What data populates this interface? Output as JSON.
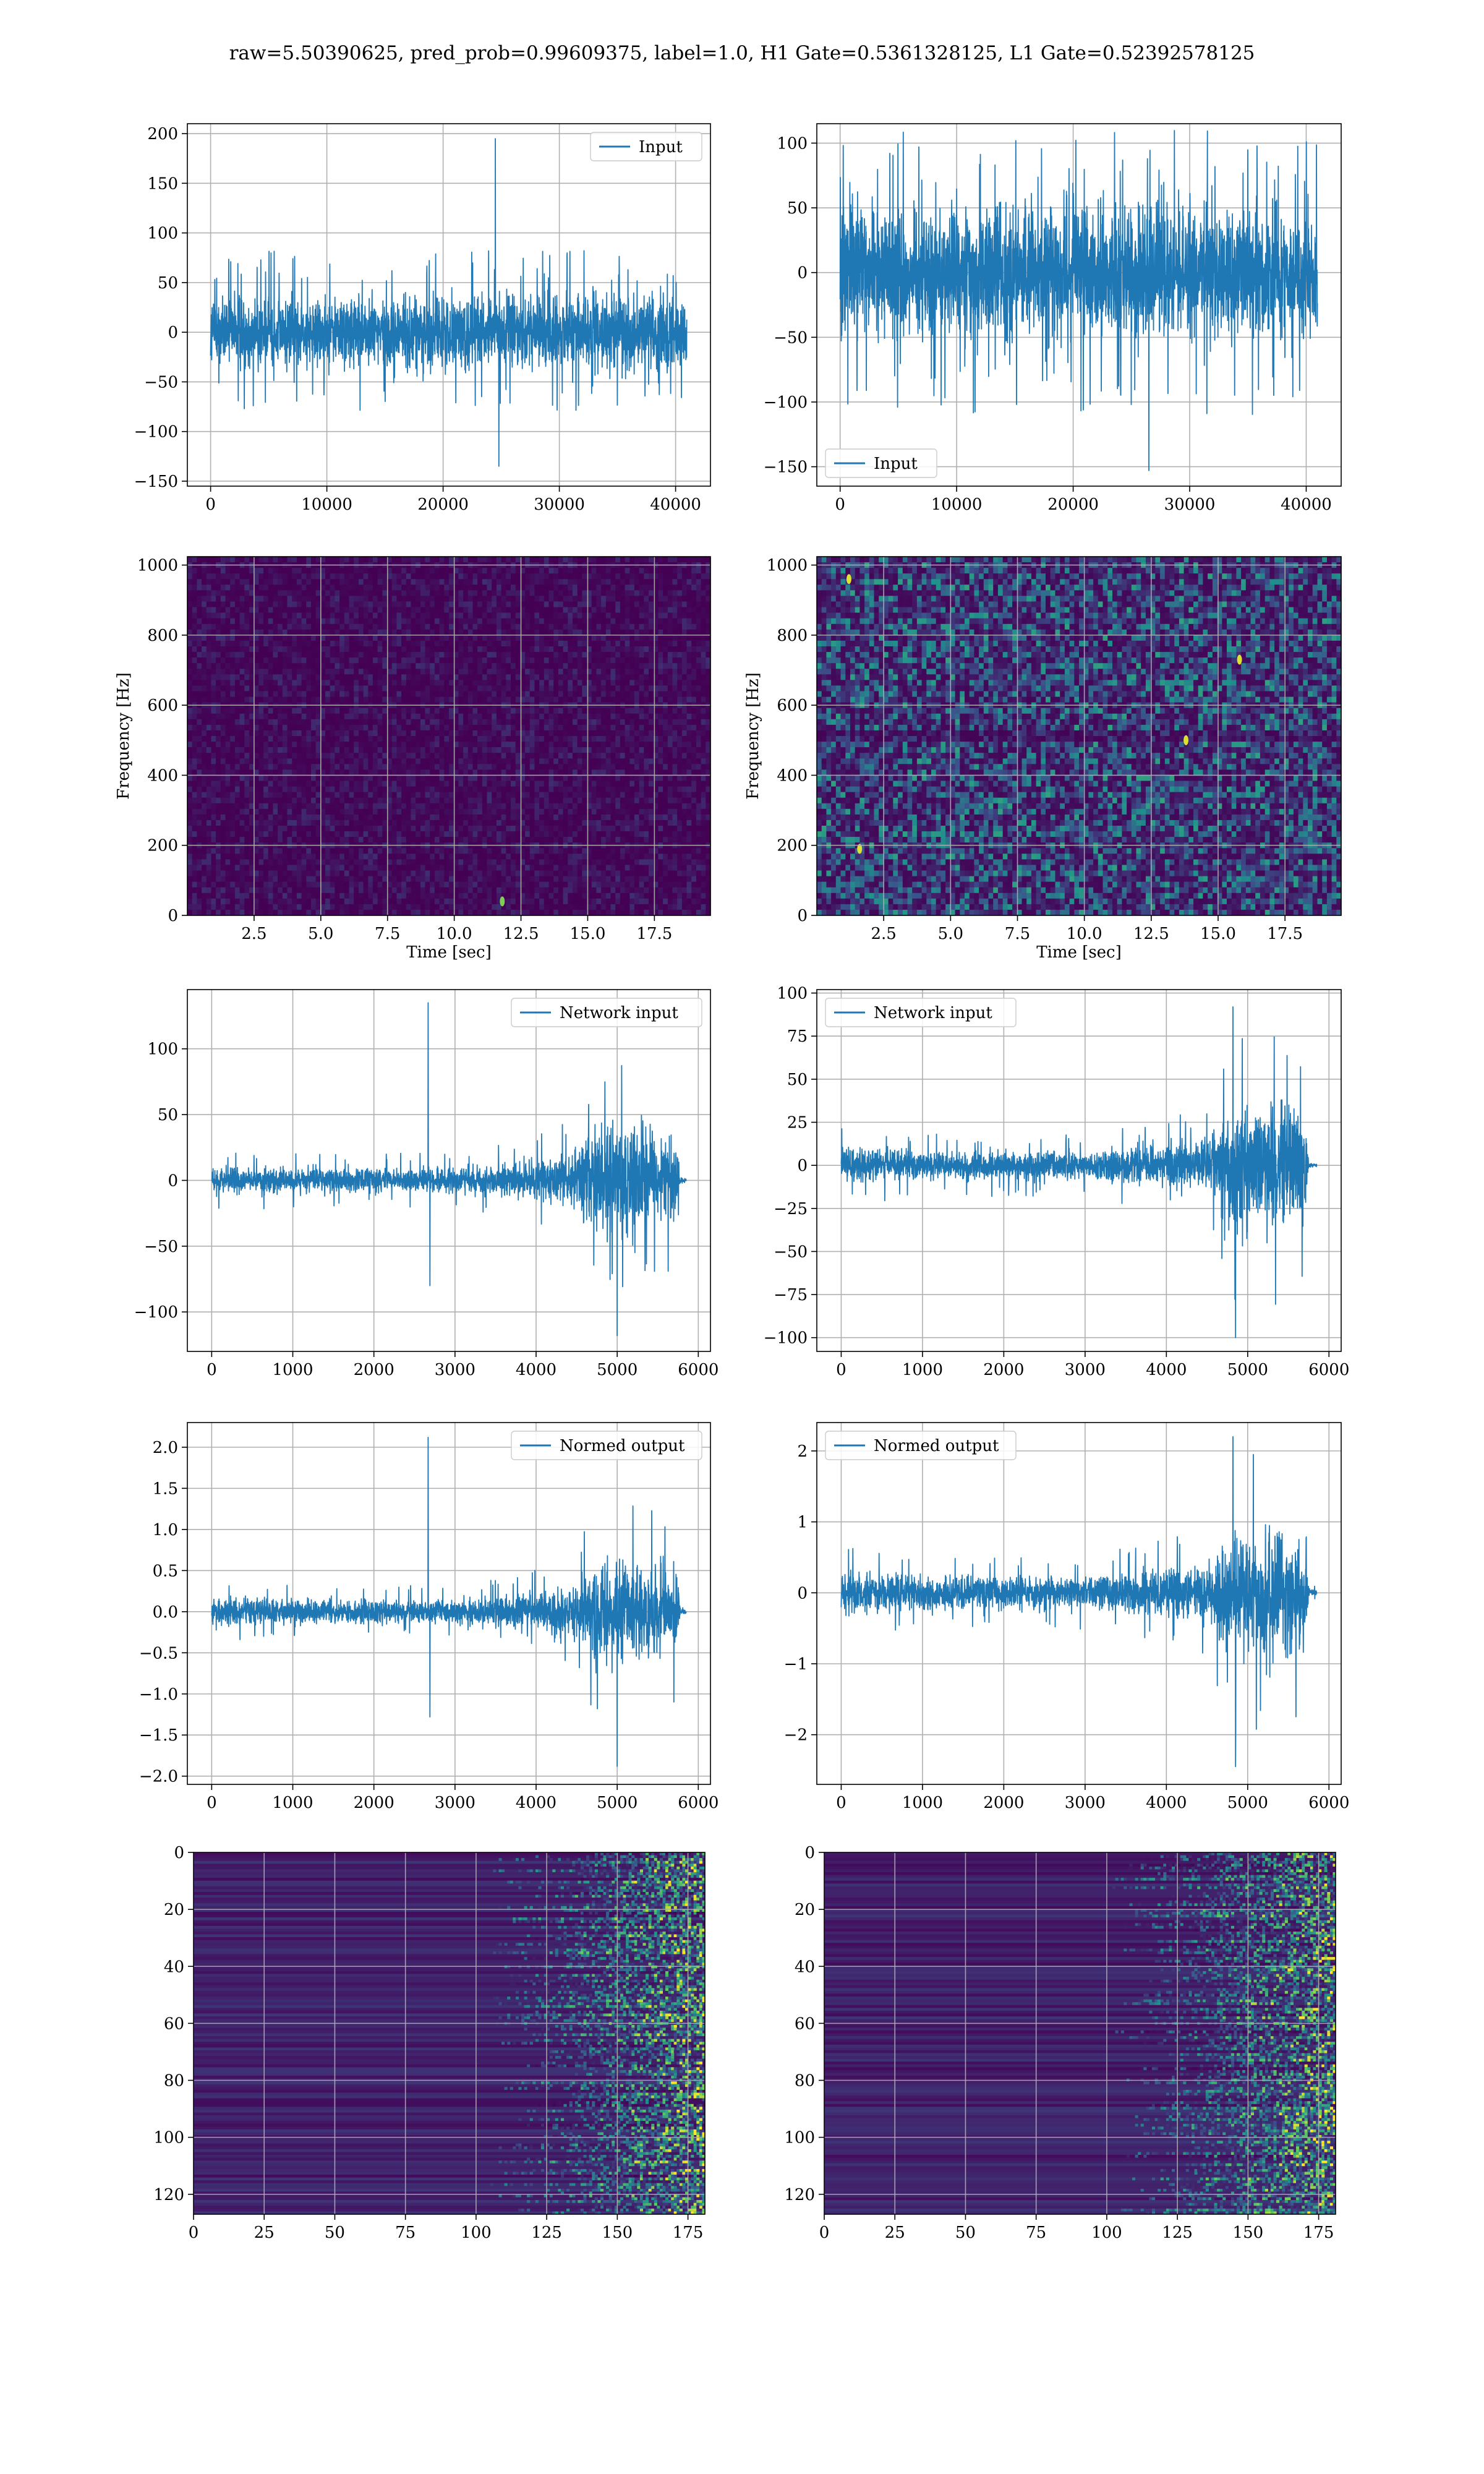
{
  "suptitle": "raw=5.50390625, pred_prob=0.99609375, label=1.0, H1 Gate=0.5361328125, L1 Gate=0.52392578125",
  "colors": {
    "line": "#1f77b4",
    "grid": "#b0b0b0",
    "spines": "#000000",
    "viridis_low": "#440154",
    "viridis_mid": "#21918c",
    "viridis_high": "#fde725"
  },
  "chart_data": [
    {
      "type": "line",
      "id": "h1-input",
      "legend": [
        "Input"
      ],
      "legend_loc": "upper right",
      "xlim": [
        -2000,
        43000
      ],
      "ylim": [
        -155,
        210
      ],
      "xticks": [
        0,
        10000,
        20000,
        30000,
        40000
      ],
      "yticks": [
        -150,
        -100,
        -50,
        0,
        50,
        100,
        150,
        200
      ],
      "x_range": [
        0,
        40960
      ],
      "band": [
        -55,
        55
      ],
      "peaks": [
        100,
        -120
      ],
      "spikes": [
        {
          "x": 24500,
          "y": 195
        },
        {
          "x": 24800,
          "y": -135
        }
      ],
      "grid": true
    },
    {
      "type": "line",
      "id": "l1-input",
      "legend": [
        "Input"
      ],
      "legend_loc": "lower left",
      "xlim": [
        -2000,
        43000
      ],
      "ylim": [
        -165,
        115
      ],
      "xticks": [
        0,
        10000,
        20000,
        30000,
        40000
      ],
      "yticks": [
        -150,
        -100,
        -50,
        0,
        50,
        100
      ],
      "x_range": [
        0,
        40960
      ],
      "band": [
        -75,
        75
      ],
      "peaks": [
        112,
        -120
      ],
      "spikes": [
        {
          "x": 26500,
          "y": -153
        }
      ],
      "grid": true
    },
    {
      "type": "heatmap",
      "id": "h1-spectrogram",
      "xlabel": "Time [sec]",
      "ylabel": "Frequency [Hz]",
      "xlim": [
        0,
        19.6
      ],
      "ylim": [
        0,
        1024
      ],
      "xticks": [
        2.5,
        5.0,
        7.5,
        10.0,
        12.5,
        15.0,
        17.5
      ],
      "yticks": [
        0,
        200,
        400,
        600,
        800,
        1000
      ],
      "description_level": "mostly dark (#440154) with faint speckle; one bright blip near t=11.8 s, f=40 Hz",
      "hotspots": [
        {
          "x": 11.8,
          "y": 40
        }
      ],
      "grid": true
    },
    {
      "type": "heatmap",
      "id": "l1-spectrogram",
      "xlabel": "Time [sec]",
      "ylabel": "Frequency [Hz]",
      "xlim": [
        0,
        19.6
      ],
      "ylim": [
        0,
        1024
      ],
      "xticks": [
        2.5,
        5.0,
        7.5,
        10.0,
        12.5,
        15.0,
        17.5
      ],
      "yticks": [
        0,
        200,
        400,
        600,
        800,
        1000
      ],
      "hotspots": [
        {
          "x": 1.2,
          "y": 960
        },
        {
          "x": 13.8,
          "y": 500
        },
        {
          "x": 15.8,
          "y": 730
        },
        {
          "x": 1.6,
          "y": 190
        }
      ],
      "grid": true
    },
    {
      "type": "line",
      "id": "h1-network-input",
      "legend": [
        "Network input"
      ],
      "legend_loc": "upper right",
      "xlim": [
        -300,
        6150
      ],
      "ylim": [
        -130,
        145
      ],
      "xticks": [
        0,
        1000,
        2000,
        3000,
        4000,
        5000,
        6000
      ],
      "yticks": [
        -100,
        -50,
        0,
        50,
        100
      ],
      "envelope": [
        [
          0,
          18
        ],
        [
          1000,
          16
        ],
        [
          2500,
          16
        ],
        [
          3500,
          20
        ],
        [
          4400,
          35
        ],
        [
          4800,
          70
        ],
        [
          5300,
          70
        ],
        [
          5750,
          60
        ],
        [
          5780,
          3
        ],
        [
          5850,
          3
        ]
      ],
      "spikes": [
        {
          "x": 2670,
          "y": 135
        },
        {
          "x": 2690,
          "y": -80
        },
        {
          "x": 5000,
          "y": -118
        }
      ],
      "grid": true
    },
    {
      "type": "line",
      "id": "l1-network-input",
      "legend": [
        "Network input"
      ],
      "legend_loc": "upper left",
      "xlim": [
        -300,
        6150
      ],
      "ylim": [
        -108,
        102
      ],
      "xticks": [
        0,
        1000,
        2000,
        3000,
        4000,
        5000,
        6000
      ],
      "yticks": [
        -100,
        -75,
        -50,
        -25,
        0,
        25,
        50,
        75,
        100
      ],
      "envelope": [
        [
          0,
          18
        ],
        [
          1000,
          14
        ],
        [
          3000,
          14
        ],
        [
          3500,
          18
        ],
        [
          4500,
          25
        ],
        [
          4800,
          60
        ],
        [
          5500,
          65
        ],
        [
          5720,
          55
        ],
        [
          5750,
          3
        ],
        [
          5850,
          3
        ]
      ],
      "spikes": [
        {
          "x": 4820,
          "y": 92
        },
        {
          "x": 4850,
          "y": -100
        }
      ],
      "grid": true
    },
    {
      "type": "line",
      "id": "h1-normed-output",
      "legend": [
        "Normed output"
      ],
      "legend_loc": "upper right",
      "xlim": [
        -300,
        6150
      ],
      "ylim": [
        -2.1,
        2.3
      ],
      "xticks": [
        0,
        1000,
        2000,
        3000,
        4000,
        5000,
        6000
      ],
      "yticks": [
        -2.0,
        -1.5,
        -1.0,
        -0.5,
        0.0,
        0.5,
        1.0,
        1.5,
        2.0
      ],
      "envelope": [
        [
          0,
          0.3
        ],
        [
          1000,
          0.25
        ],
        [
          2500,
          0.25
        ],
        [
          3500,
          0.3
        ],
        [
          4400,
          0.5
        ],
        [
          4800,
          1.1
        ],
        [
          5300,
          1.1
        ],
        [
          5750,
          0.9
        ],
        [
          5780,
          0.05
        ],
        [
          5850,
          0.05
        ]
      ],
      "spikes": [
        {
          "x": 2670,
          "y": 2.12
        },
        {
          "x": 2690,
          "y": -1.28
        },
        {
          "x": 5000,
          "y": -1.88
        }
      ],
      "grid": true
    },
    {
      "type": "line",
      "id": "l1-normed-output",
      "legend": [
        "Normed output"
      ],
      "legend_loc": "upper left",
      "xlim": [
        -300,
        6150
      ],
      "ylim": [
        -2.7,
        2.4
      ],
      "xticks": [
        0,
        1000,
        2000,
        3000,
        4000,
        5000,
        6000
      ],
      "yticks": [
        -2,
        -1,
        0,
        1,
        2
      ],
      "envelope": [
        [
          0,
          0.5
        ],
        [
          1000,
          0.4
        ],
        [
          3000,
          0.4
        ],
        [
          3500,
          0.5
        ],
        [
          4500,
          0.7
        ],
        [
          4800,
          1.5
        ],
        [
          5500,
          1.6
        ],
        [
          5720,
          1.3
        ],
        [
          5750,
          0.08
        ],
        [
          5850,
          0.08
        ]
      ],
      "spikes": [
        {
          "x": 4820,
          "y": 2.2
        },
        {
          "x": 4850,
          "y": -2.45
        }
      ],
      "grid": true
    },
    {
      "type": "heatmap",
      "id": "h1-activations",
      "xlim": [
        0,
        181
      ],
      "ylim": [
        127,
        0
      ],
      "xticks": [
        0,
        25,
        50,
        75,
        100,
        125,
        150,
        175
      ],
      "yticks": [
        0,
        20,
        40,
        60,
        80,
        100,
        120
      ],
      "onset": 125,
      "grid": true
    },
    {
      "type": "heatmap",
      "id": "l1-activations",
      "xlim": [
        0,
        181
      ],
      "ylim": [
        127,
        0
      ],
      "xticks": [
        0,
        25,
        50,
        75,
        100,
        125,
        150,
        175
      ],
      "yticks": [
        0,
        20,
        40,
        60,
        80,
        100,
        120
      ],
      "onset": 122,
      "grid": true
    }
  ]
}
